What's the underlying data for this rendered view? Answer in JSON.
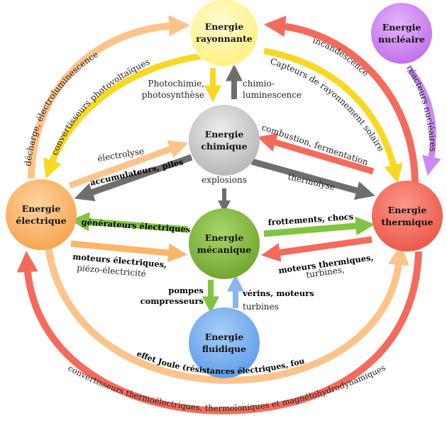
{
  "nodes": {
    "rayonnante": {
      "line1": "Energie",
      "line2": "rayonnante",
      "color": "#fff59a"
    },
    "nucleaire": {
      "line1": "Energie",
      "line2": "nucléaire",
      "color": "#cf7ff2"
    },
    "chimique": {
      "line1": "Energie",
      "line2": "chimique",
      "color": "#c9c9c9"
    },
    "electrique": {
      "line1": "Energie",
      "line2": "électrique",
      "color": "#fbb66a"
    },
    "mecanique": {
      "line1": "Energie",
      "line2": "mécanique",
      "color": "#82b93a"
    },
    "thermique": {
      "line1": "Energie",
      "line2": "thermique",
      "color": "#f46b5c"
    },
    "fluidique": {
      "line1": "Energie",
      "line2": "fluidique",
      "color": "#74aef2"
    }
  },
  "labels": {
    "photochimie_1": "Photochimie,",
    "photochimie_2": "photosynthèse",
    "chimio_1": "chimio-",
    "chimio_2": "luminescence",
    "electroluminescence": "décharge, électroluminescence",
    "photovoltaiques": "convertisseurs photovoltaïques",
    "capteurs": "Capteurs de rayonnement solaire",
    "incandescence": "incandescence",
    "reacteurs": "réacteurs nucléaires",
    "electrolyse": "électrolyse",
    "accumulateurs": "accumulateurs, piles",
    "combustion": "combustion, fermentation",
    "thermolyse": "thermolyse",
    "explosions": "explosions",
    "generateurs": "générateurs électriques",
    "frottements": "frottements, chocs",
    "moteurs_elec_1": "moteurs électriques,",
    "moteurs_elec_2": "piézo-électricité",
    "moteurs_therm_1": "moteurs thermiques,",
    "moteurs_therm_2": "turbines,",
    "pompes_1": "pompes",
    "pompes_2": "compresseurs",
    "verins_1": "vérins, moteurs",
    "verins_2": "turbines",
    "joule": "effet Joule (résistances électriques, fours, etc.)",
    "thermoelectriques": "convertisseurs thermoélectriques, thermoïoniques et magnétohydrodynamiques"
  },
  "colors": {
    "orange_light": "#fcc48a",
    "orange": "#fbb66a",
    "yellow": "#f8d822",
    "red": "#f46b5c",
    "grey": "#6e6e6e",
    "green": "#82c341",
    "blue": "#8bb4f0",
    "purple": "#c98af2"
  }
}
